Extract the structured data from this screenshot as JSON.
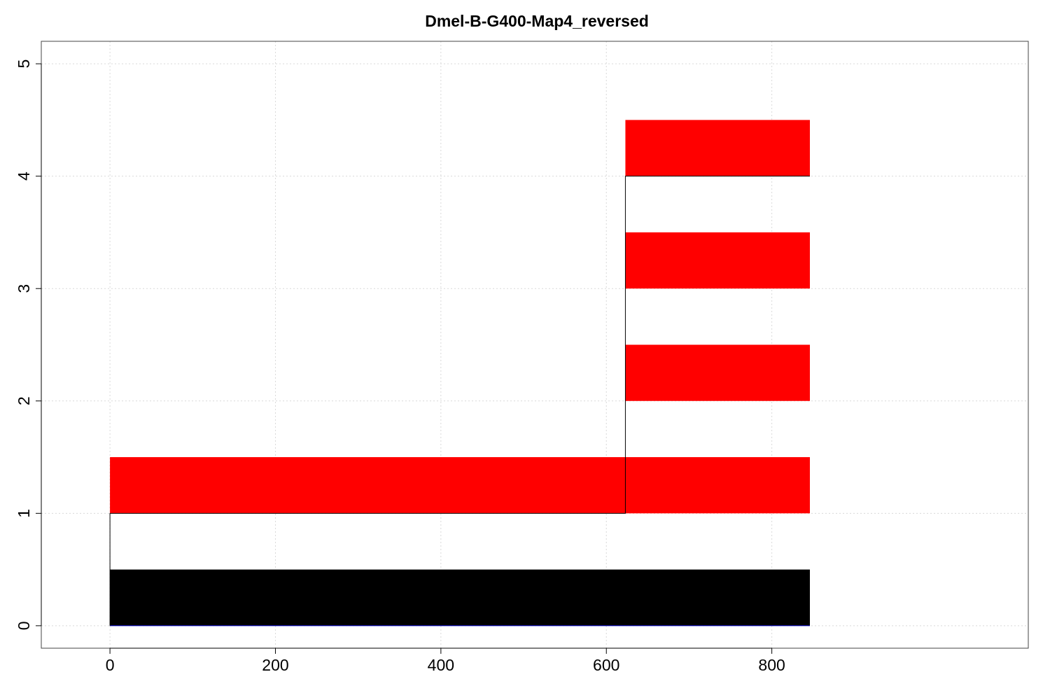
{
  "chart_data": {
    "type": "bar",
    "title": "Dmel-B-G400-Map4_reversed",
    "xlabel": "",
    "ylabel": "",
    "xlim": [
      -83,
      1110
    ],
    "ylim": [
      -0.2,
      5.2
    ],
    "x_ticks": [
      0,
      200,
      400,
      600,
      800
    ],
    "y_ticks": [
      0,
      1,
      2,
      3,
      4,
      5
    ],
    "grid": true,
    "colors": {
      "red": "#ff0000",
      "black": "#000000",
      "line": "#000000",
      "baseline": "#0000cc"
    },
    "bars": [
      {
        "x_start": 0,
        "x_end": 846,
        "y_bottom": 0,
        "y_top": 0.5,
        "color": "#000000"
      },
      {
        "x_start": 0,
        "x_end": 623,
        "y_bottom": 1,
        "y_top": 1.5,
        "color": "#ff0000"
      },
      {
        "x_start": 623,
        "x_end": 846,
        "y_bottom": 1,
        "y_top": 1.5,
        "color": "#ff0000"
      },
      {
        "x_start": 623,
        "x_end": 846,
        "y_bottom": 2,
        "y_top": 2.5,
        "color": "#ff0000"
      },
      {
        "x_start": 623,
        "x_end": 846,
        "y_bottom": 3,
        "y_top": 3.5,
        "color": "#ff0000"
      },
      {
        "x_start": 623,
        "x_end": 846,
        "y_bottom": 4,
        "y_top": 4.5,
        "color": "#ff0000"
      }
    ],
    "step_line": [
      {
        "x": 0,
        "y": 0
      },
      {
        "x": 0,
        "y": 1
      },
      {
        "x": 623,
        "y": 1
      },
      {
        "x": 623,
        "y": 4
      },
      {
        "x": 846,
        "y": 4
      }
    ]
  }
}
